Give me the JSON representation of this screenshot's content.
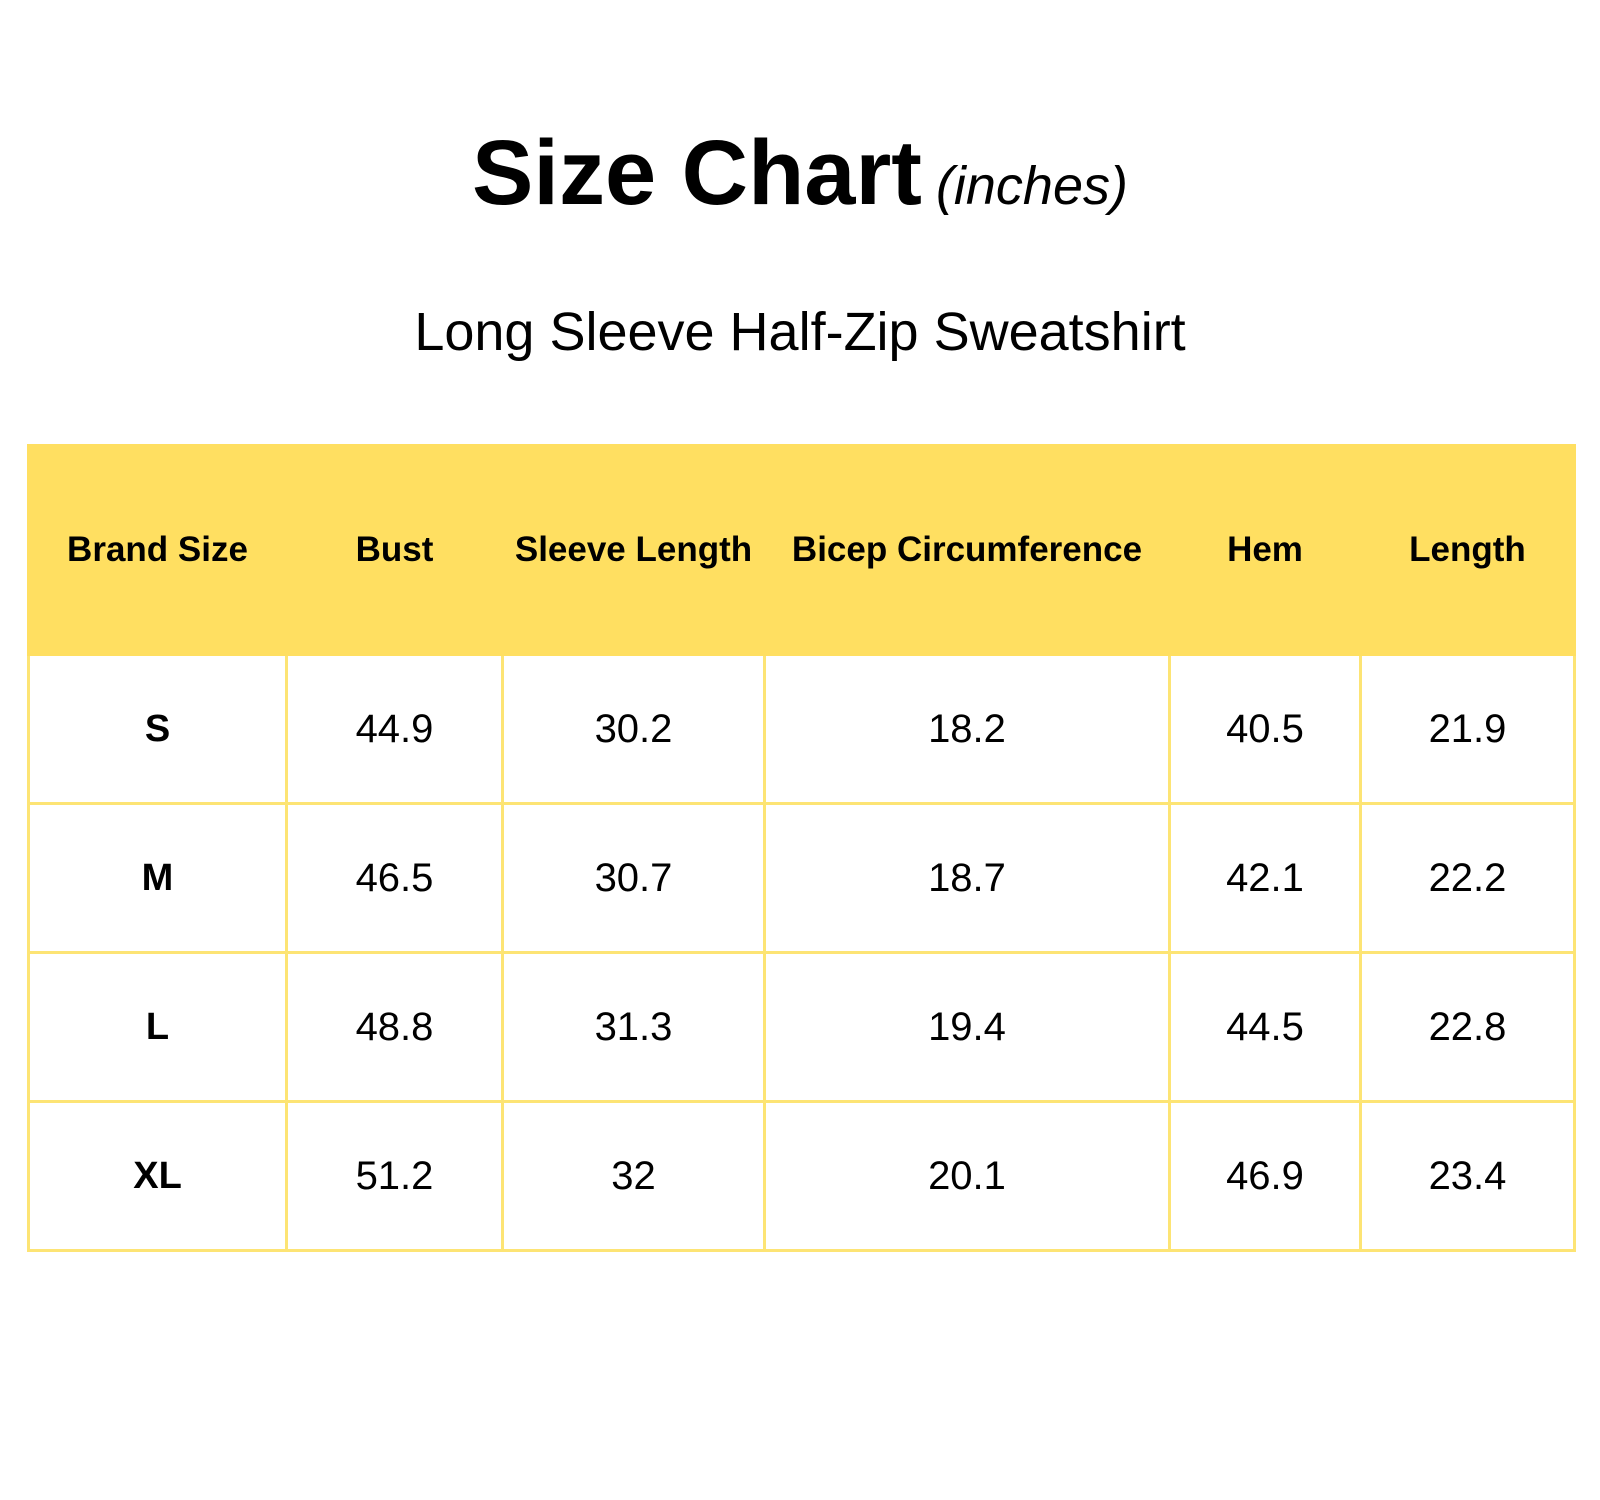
{
  "header": {
    "title": "Size Chart",
    "unit": "(inches)",
    "subtitle": "Long Sleeve Half-Zip Sweatshirt"
  },
  "colors": {
    "header_background": "#ffdf61",
    "grid_line": "#fde474"
  },
  "table": {
    "columns": [
      "Brand Size",
      "Bust",
      "Sleeve Length",
      "Bicep Circumference",
      "Hem",
      "Length"
    ],
    "rows": [
      [
        "S",
        "44.9",
        "30.2",
        "18.2",
        "40.5",
        "21.9"
      ],
      [
        "M",
        "46.5",
        "30.7",
        "18.7",
        "42.1",
        "22.2"
      ],
      [
        "L",
        "48.8",
        "31.3",
        "19.4",
        "44.5",
        "22.8"
      ],
      [
        "XL",
        "51.2",
        "32",
        "20.1",
        "46.9",
        "23.4"
      ]
    ]
  }
}
